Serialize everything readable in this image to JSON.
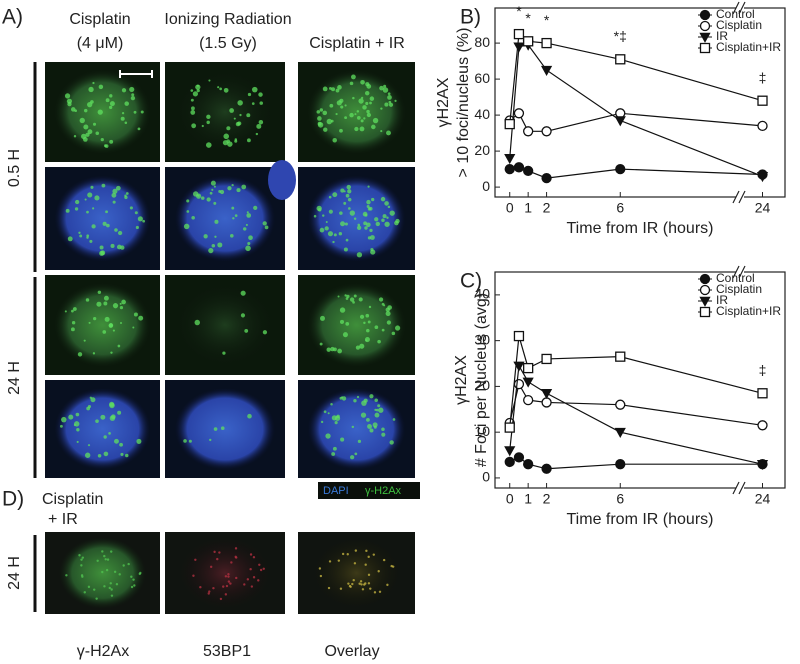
{
  "panel_a": {
    "label": "A)",
    "columns": [
      [
        "Cisplatin",
        "(4 μM)"
      ],
      [
        "Ionizing Radiation",
        "(1.5 Gy)"
      ],
      [
        "Cisplatin + IR"
      ]
    ],
    "rows": [
      "0.5 H",
      "24 H"
    ],
    "legend": [
      "DAPI",
      "γ-H2Ax"
    ]
  },
  "panel_d": {
    "label": "D)",
    "condition": [
      "Cisplatin",
      "+ IR"
    ],
    "row": "24 H",
    "columns": [
      "γ-H2Ax",
      "53BP1",
      "Overlay"
    ]
  },
  "chart_data": [
    {
      "type": "line",
      "label": "B)",
      "xlabel": "Time from IR (hours)",
      "ylabel": [
        "γH2AX",
        "> 10 foci/nucleus (%)"
      ],
      "x": [
        0,
        0.5,
        1,
        2,
        6,
        24
      ],
      "xlim": [
        -0.8,
        25
      ],
      "x_break": [
        12.5,
        23
      ],
      "xticks": [
        0,
        1,
        2,
        6,
        24
      ],
      "ylim": [
        -5.5,
        99.5
      ],
      "yticks": [
        0,
        20,
        40,
        60,
        80
      ],
      "legend": "upper right",
      "series": [
        {
          "name": "Control",
          "marker": "circle-filled",
          "color": "#111",
          "values": [
            10,
            11,
            9,
            5,
            10,
            7
          ]
        },
        {
          "name": "Cisplatin",
          "marker": "circle-open",
          "color": "#111",
          "values": [
            37,
            41,
            31,
            31,
            41,
            34
          ]
        },
        {
          "name": "IR",
          "marker": "triangle-filled",
          "color": "#111",
          "values": [
            16,
            78,
            79,
            65,
            37,
            6
          ]
        },
        {
          "name": "Cisplatin+IR",
          "marker": "square-open",
          "color": "#111",
          "values": [
            35,
            85,
            81,
            80,
            71,
            48
          ]
        }
      ],
      "annotations": [
        {
          "x": 0.5,
          "text": "*"
        },
        {
          "x": 1,
          "text": "*"
        },
        {
          "x": 2,
          "text": "*"
        },
        {
          "x": 6,
          "text": "*‡"
        },
        {
          "x": 24,
          "text": "‡"
        }
      ]
    },
    {
      "type": "line",
      "label": "C)",
      "xlabel": "Time from IR (hours)",
      "ylabel": [
        "γH2AX",
        "# Foci per Nucleus (avg)"
      ],
      "x": [
        0,
        0.5,
        1,
        2,
        6,
        24
      ],
      "xlim": [
        -0.8,
        25
      ],
      "x_break": [
        12.5,
        23
      ],
      "xticks": [
        0,
        1,
        2,
        6,
        24
      ],
      "ylim": [
        -2.2,
        45
      ],
      "yticks": [
        0,
        10,
        20,
        30,
        40
      ],
      "legend": "upper right",
      "series": [
        {
          "name": "Control",
          "marker": "circle-filled",
          "color": "#111",
          "values": [
            3.5,
            4.5,
            3,
            2,
            3,
            3
          ]
        },
        {
          "name": "Cisplatin",
          "marker": "circle-open",
          "color": "#111",
          "values": [
            12,
            20.5,
            17,
            16.5,
            16,
            11.5
          ]
        },
        {
          "name": "IR",
          "marker": "triangle-filled",
          "color": "#111",
          "values": [
            6,
            24.5,
            21,
            18.5,
            10,
            3
          ]
        },
        {
          "name": "Cisplatin+IR",
          "marker": "square-open",
          "color": "#111",
          "values": [
            11,
            31,
            24,
            26,
            26.5,
            18.5
          ]
        }
      ],
      "annotations": [
        {
          "x": 24,
          "text": "‡"
        }
      ]
    }
  ]
}
